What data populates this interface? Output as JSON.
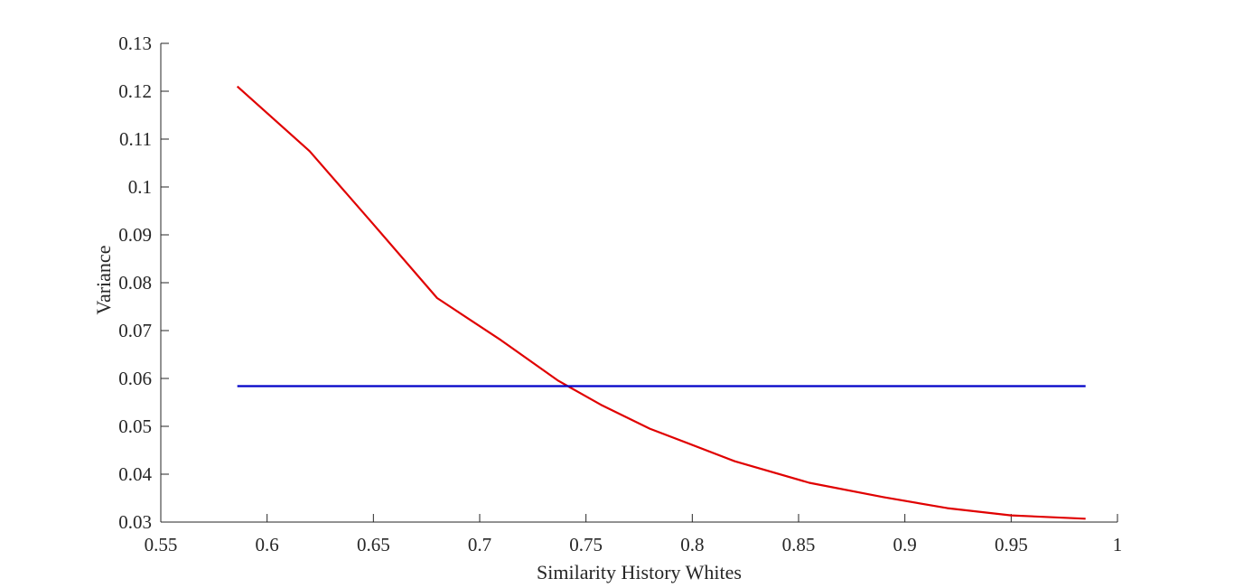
{
  "chart_data": {
    "type": "line",
    "title": "",
    "xlabel": "Similarity History Whites",
    "ylabel": "Variance",
    "xlim": [
      0.55,
      1.0
    ],
    "ylim": [
      0.03,
      0.13
    ],
    "xticks": [
      "0.55",
      "0.6",
      "0.65",
      "0.7",
      "0.75",
      "0.8",
      "0.85",
      "0.9",
      "0.95",
      "1"
    ],
    "yticks": [
      "0.03",
      "0.04",
      "0.05",
      "0.06",
      "0.07",
      "0.08",
      "0.09",
      "0.1",
      "0.11",
      "0.12",
      "0.13"
    ],
    "grid": false,
    "legend": "none",
    "series": [
      {
        "color": "#e00000",
        "x": [
          0.586,
          0.62,
          0.65,
          0.68,
          0.71,
          0.737,
          0.757,
          0.78,
          0.82,
          0.855,
          0.89,
          0.92,
          0.95,
          0.985
        ],
        "y": [
          0.121,
          0.1075,
          0.0922,
          0.0768,
          0.068,
          0.0595,
          0.0545,
          0.0495,
          0.0427,
          0.0382,
          0.0352,
          0.0329,
          0.0314,
          0.0307
        ]
      },
      {
        "color": "#0000c8",
        "x": [
          0.586,
          0.985
        ],
        "y": [
          0.0584,
          0.0584
        ]
      }
    ]
  }
}
